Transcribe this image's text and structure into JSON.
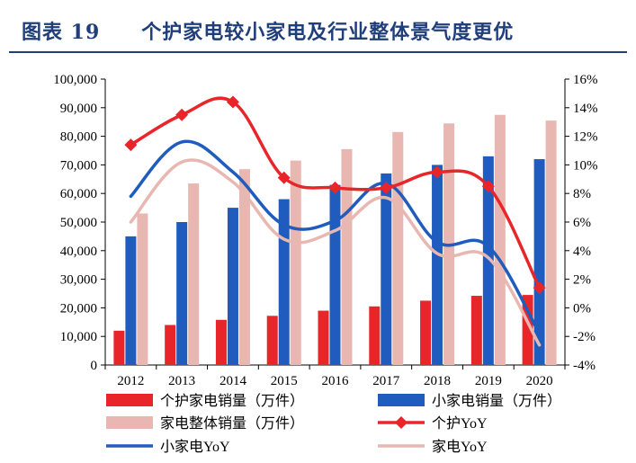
{
  "title": "图表 19　　个护家电较小家电及行业整体景气度更优",
  "colors": {
    "title": "#1f3e7a",
    "personal_care_sales": "#e8262a",
    "small_appliance_sales": "#1f5cbd",
    "appliance_total_sales": "#e8b7b2",
    "personal_care_yoy": "#e8262a",
    "small_appliance_yoy": "#1f5cbd",
    "appliance_yoy": "#e8b7b2"
  },
  "chart_data": {
    "type": "bar+line",
    "categories": [
      "2012",
      "2013",
      "2014",
      "2015",
      "2016",
      "2017",
      "2018",
      "2019",
      "2020"
    ],
    "y_left": {
      "min": 0,
      "max": 100000,
      "ticks": [
        "0",
        "10,000",
        "20,000",
        "30,000",
        "40,000",
        "50,000",
        "60,000",
        "70,000",
        "80,000",
        "90,000",
        "100,000"
      ]
    },
    "y_right": {
      "min": -4,
      "max": 16,
      "ticks": [
        "-4%",
        "-2%",
        "0%",
        "2%",
        "4%",
        "6%",
        "8%",
        "10%",
        "12%",
        "14%",
        "16%"
      ]
    },
    "bar_series": [
      {
        "name": "个护家电销量（万件）",
        "color": "#e8262a",
        "values": [
          12000,
          14000,
          15800,
          17200,
          19000,
          20500,
          22500,
          24200,
          24500
        ]
      },
      {
        "name": "小家电销量（万件）",
        "color": "#1f5cbd",
        "values": [
          45000,
          50000,
          55000,
          58000,
          63000,
          67000,
          70000,
          73000,
          72000
        ]
      },
      {
        "name": "家电整体销量（万件）",
        "color": "#e8b7b2",
        "values": [
          53000,
          63500,
          68500,
          71500,
          75500,
          81500,
          84500,
          87500,
          85500
        ]
      }
    ],
    "line_series": [
      {
        "name": "个护YoY",
        "color": "#e8262a",
        "markers": true,
        "values": [
          11.4,
          13.5,
          14.4,
          9.1,
          8.4,
          8.4,
          9.5,
          8.5,
          1.4
        ]
      },
      {
        "name": "小家电YoY",
        "color": "#1f5cbd",
        "markers": false,
        "values": [
          7.8,
          11.6,
          9.5,
          5.8,
          6.1,
          8.7,
          4.6,
          4.3,
          -1.8
        ]
      },
      {
        "name": "家电YoY",
        "color": "#e8b7b2",
        "markers": false,
        "values": [
          6.0,
          10.2,
          8.8,
          4.8,
          5.4,
          7.7,
          3.8,
          3.5,
          -2.6
        ]
      }
    ],
    "legend": {
      "placement": "bottom"
    }
  }
}
